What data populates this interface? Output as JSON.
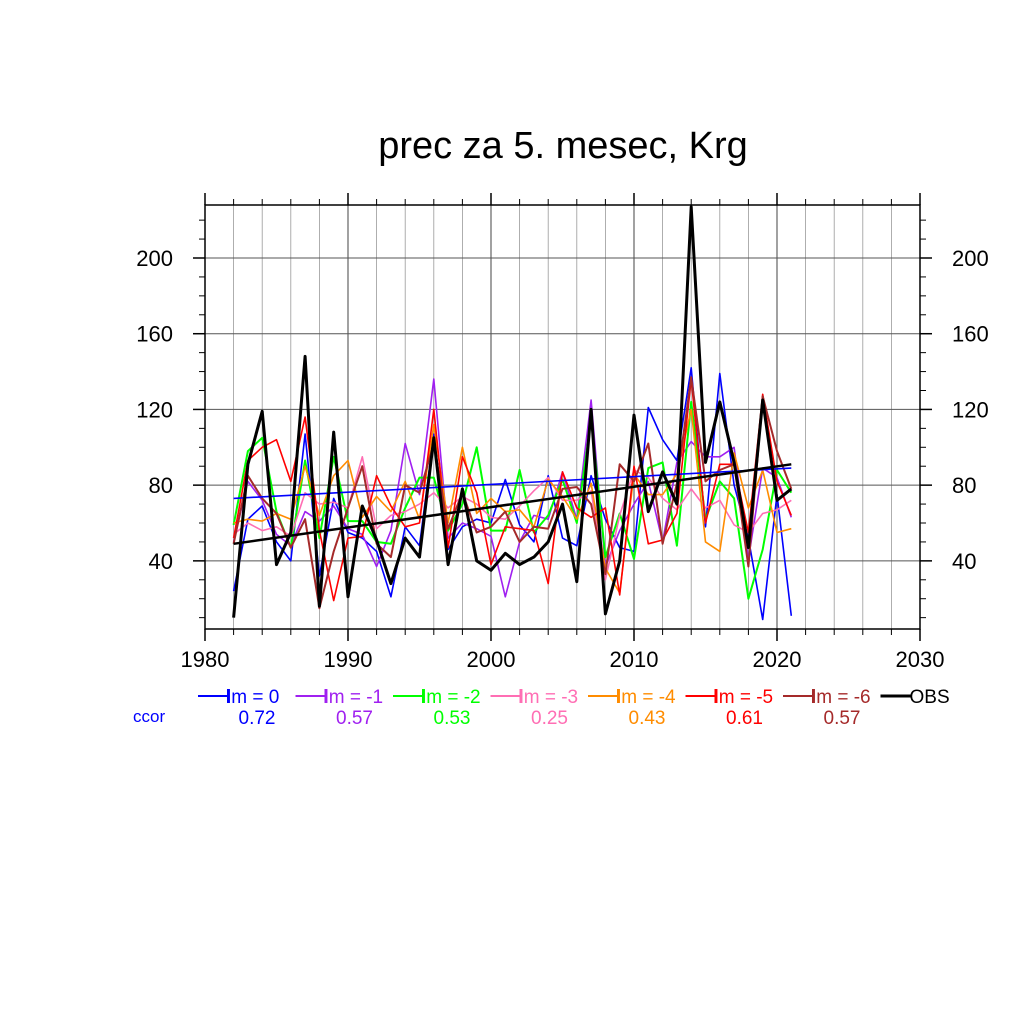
{
  "chart_data": {
    "type": "line",
    "title": "prec za 5. mesec, Krg",
    "xlabel": "",
    "ylabel": "",
    "xlim": [
      1980,
      2030
    ],
    "ylim": [
      4,
      228
    ],
    "xticks": [
      1980,
      1990,
      2000,
      2010,
      2020,
      2030
    ],
    "yticks": [
      40,
      80,
      120,
      160,
      200
    ],
    "grid": true,
    "legend_position": "bottom",
    "x": [
      1982,
      1983,
      1984,
      1985,
      1986,
      1987,
      1988,
      1989,
      1990,
      1991,
      1992,
      1993,
      1994,
      1995,
      1996,
      1997,
      1998,
      1999,
      2000,
      2001,
      2002,
      2003,
      2004,
      2005,
      2006,
      2007,
      2008,
      2009,
      2010,
      2011,
      2012,
      2013,
      2014,
      2015,
      2016,
      2017,
      2018,
      2019,
      2020,
      2021
    ],
    "series": [
      {
        "name": "lm = 0",
        "color": "#0000ff",
        "width": 1.6,
        "values": [
          24,
          62,
          69,
          50,
          40,
          107,
          32,
          73,
          55,
          52,
          45,
          21,
          58,
          48,
          107,
          46,
          58,
          62,
          60,
          83,
          59,
          50,
          85,
          52,
          48,
          85,
          62,
          47,
          45,
          121,
          104,
          93,
          142,
          58,
          139,
          80,
          52,
          9,
          75,
          11
        ]
      },
      {
        "name": "lm = -1",
        "color": "#a020f0",
        "width": 1.6,
        "values": [
          50,
          82,
          72,
          54,
          48,
          66,
          61,
          69,
          57,
          54,
          37,
          56,
          102,
          75,
          136,
          52,
          60,
          57,
          53,
          21,
          50,
          64,
          62,
          87,
          62,
          125,
          37,
          56,
          70,
          82,
          50,
          92,
          103,
          95,
          95,
          100,
          41,
          89,
          84,
          63
        ]
      },
      {
        "name": "lm = -2",
        "color": "#00ff00",
        "width": 2.0,
        "values": [
          59,
          98,
          105,
          66,
          47,
          93,
          52,
          95,
          61,
          61,
          50,
          49,
          68,
          84,
          84,
          56,
          70,
          100,
          56,
          56,
          88,
          55,
          64,
          83,
          60,
          115,
          42,
          65,
          41,
          89,
          92,
          48,
          124,
          62,
          82,
          73,
          20,
          46,
          88,
          76
        ]
      },
      {
        "name": "lm = -3",
        "color": "#ff6eb4",
        "width": 1.6,
        "values": [
          54,
          60,
          56,
          58,
          53,
          76,
          70,
          71,
          68,
          95,
          57,
          64,
          66,
          70,
          76,
          68,
          74,
          70,
          63,
          62,
          69,
          77,
          84,
          72,
          72,
          77,
          30,
          64,
          88,
          84,
          73,
          67,
          78,
          68,
          72,
          59,
          55,
          65,
          67,
          72
        ]
      },
      {
        "name": "lm = -4",
        "color": "#ff8c00",
        "width": 1.6,
        "values": [
          60,
          62,
          61,
          65,
          62,
          90,
          64,
          85,
          93,
          63,
          74,
          66,
          82,
          62,
          112,
          60,
          100,
          65,
          73,
          66,
          67,
          58,
          83,
          74,
          62,
          81,
          36,
          23,
          86,
          75,
          75,
          86,
          120,
          50,
          45,
          97,
          68,
          88,
          55,
          57
        ]
      },
      {
        "name": "lm = -5",
        "color": "#ff0000",
        "width": 1.6,
        "values": [
          52,
          93,
          100,
          104,
          82,
          116,
          56,
          19,
          52,
          53,
          85,
          69,
          58,
          60,
          120,
          47,
          95,
          76,
          38,
          58,
          57,
          56,
          28,
          87,
          68,
          63,
          68,
          22,
          90,
          49,
          51,
          65,
          136,
          60,
          91,
          91,
          55,
          128,
          82,
          64
        ]
      },
      {
        "name": "lm = -6",
        "color": "#a52a2a",
        "width": 2.0,
        "values": [
          49,
          85,
          73,
          65,
          47,
          62,
          15,
          45,
          68,
          90,
          49,
          42,
          80,
          76,
          102,
          57,
          76,
          55,
          58,
          66,
          50,
          58,
          57,
          78,
          79,
          70,
          33,
          91,
          82,
          102,
          49,
          81,
          137,
          82,
          88,
          91,
          37,
          127,
          98,
          78
        ]
      },
      {
        "name": "OBS",
        "color": "#000000",
        "width": 3.0,
        "values": [
          10,
          91,
          119,
          38,
          55,
          148,
          16,
          108,
          21,
          69,
          51,
          28,
          52,
          42,
          105,
          38,
          78,
          40,
          35,
          44,
          38,
          42,
          50,
          70,
          29,
          120,
          12,
          40,
          117,
          66,
          87,
          70,
          227,
          92,
          124,
          92,
          47,
          125,
          72,
          78
        ]
      }
    ],
    "trend_lines": [
      {
        "color": "#0000ff",
        "width": 1.6,
        "x": [
          1982,
          2021
        ],
        "y": [
          73,
          89
        ]
      },
      {
        "color": "#000000",
        "width": 2.5,
        "x": [
          1982,
          2021
        ],
        "y": [
          49,
          91
        ]
      }
    ],
    "ccor_label": "ccor",
    "ccor_values": [
      "0.72",
      "0.57",
      "0.53",
      "0.25",
      "0.43",
      "0.61",
      "0.57"
    ]
  }
}
